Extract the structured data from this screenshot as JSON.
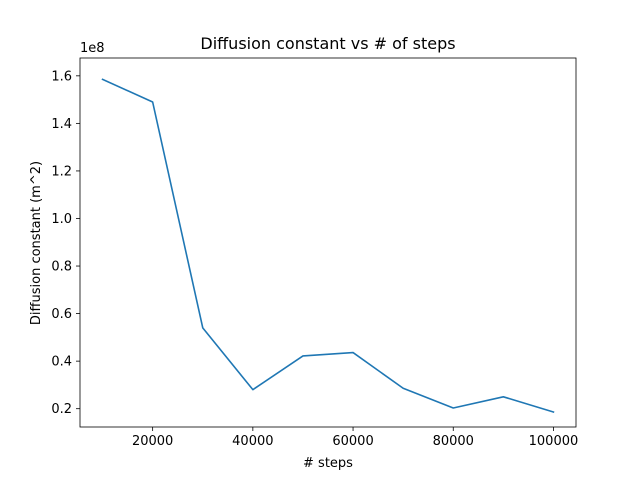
{
  "chart_data": {
    "type": "line",
    "title": "Diffusion constant vs # of steps",
    "xlabel": "# steps",
    "ylabel": "Diffusion constant (m^2)",
    "y_offset_label": "1e8",
    "xlim": [
      5500,
      104500
    ],
    "ylim": [
      12300000,
      167500000
    ],
    "x_ticks": [
      20000,
      40000,
      60000,
      80000,
      100000
    ],
    "x_tick_labels": [
      "20000",
      "40000",
      "60000",
      "80000",
      "100000"
    ],
    "y_ticks": [
      20000000,
      40000000,
      60000000,
      80000000,
      100000000,
      120000000,
      140000000,
      160000000
    ],
    "y_tick_labels": [
      "0.2",
      "0.4",
      "0.6",
      "0.8",
      "1.0",
      "1.2",
      "1.4",
      "1.6"
    ],
    "grid": false,
    "legend": "none",
    "series": [
      {
        "color": "#1f77b4",
        "x": [
          10000,
          20000,
          30000,
          40000,
          50000,
          60000,
          70000,
          80000,
          90000,
          100000
        ],
        "values": [
          158500000,
          149000000,
          54000000,
          28000000,
          42200000,
          43600000,
          28600000,
          20300000,
          25000000,
          18600000
        ]
      }
    ]
  }
}
